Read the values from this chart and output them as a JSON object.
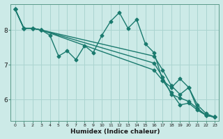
{
  "xlabel": "Humidex (Indice chaleur)",
  "background_color": "#cceae7",
  "grid_color": "#aad4d0",
  "line_color": "#1a7a6e",
  "marker": "D",
  "markersize": 2.5,
  "linewidth": 1.0,
  "xlim": [
    -0.5,
    23.5
  ],
  "ylim": [
    5.4,
    8.75
  ],
  "yticks": [
    6,
    7,
    8
  ],
  "xticks": [
    0,
    1,
    2,
    3,
    4,
    5,
    6,
    7,
    8,
    9,
    10,
    11,
    12,
    13,
    14,
    15,
    16,
    17,
    18,
    19,
    20,
    21,
    22,
    23
  ],
  "lines": [
    {
      "x": [
        0,
        1,
        2,
        3,
        4,
        5,
        6,
        7,
        8,
        9,
        10,
        11,
        12,
        13,
        14,
        15,
        16,
        17,
        18,
        19,
        20,
        21,
        22,
        23
      ],
      "y": [
        8.6,
        8.05,
        8.05,
        8.0,
        7.85,
        7.25,
        7.4,
        7.15,
        7.55,
        7.35,
        7.85,
        8.25,
        8.5,
        8.05,
        8.3,
        7.6,
        7.35,
        6.55,
        6.35,
        6.6,
        6.35,
        5.75,
        5.55,
        5.5
      ]
    },
    {
      "x": [
        0,
        1,
        2,
        3,
        16,
        17,
        18,
        19,
        20,
        21,
        22,
        23
      ],
      "y": [
        8.6,
        8.05,
        8.05,
        8.0,
        6.85,
        6.55,
        6.2,
        5.85,
        5.9,
        5.7,
        5.55,
        5.5
      ]
    },
    {
      "x": [
        0,
        1,
        2,
        3,
        16,
        17,
        18,
        19,
        20,
        21,
        22,
        23
      ],
      "y": [
        8.6,
        8.05,
        8.05,
        8.0,
        7.05,
        6.65,
        6.15,
        6.05,
        5.95,
        5.75,
        5.55,
        5.5
      ]
    },
    {
      "x": [
        0,
        1,
        2,
        3,
        16,
        17,
        18,
        19,
        20,
        21,
        22,
        23
      ],
      "y": [
        8.6,
        8.05,
        8.05,
        8.0,
        7.25,
        6.85,
        6.4,
        6.15,
        6.35,
        5.85,
        5.6,
        5.5
      ]
    }
  ]
}
